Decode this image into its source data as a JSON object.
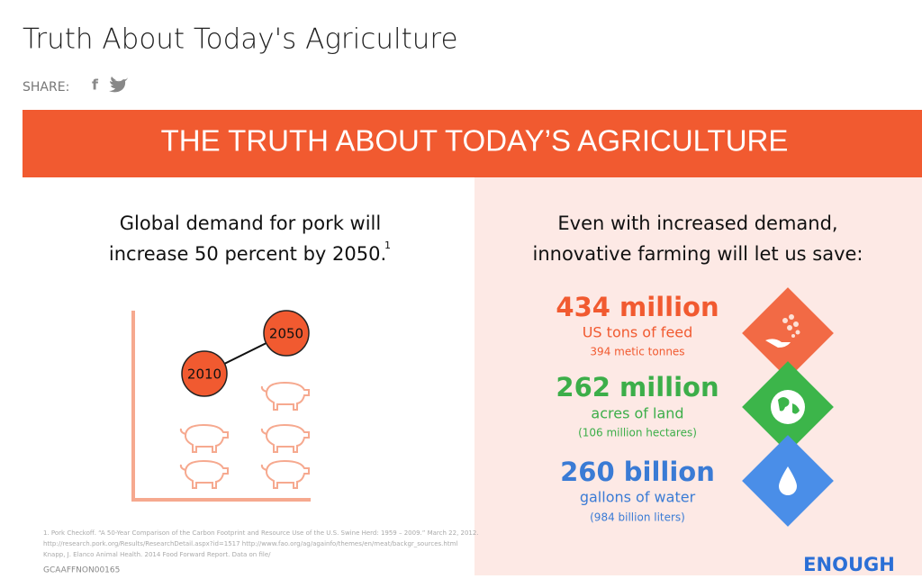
{
  "header": {
    "title": "Truth About Today's Agriculture",
    "share_label": "SHARE:"
  },
  "infographic": {
    "banner": "THE TRUTH ABOUT TODAY’S AGRICULTURE",
    "left": {
      "heading_lines": [
        "Global demand for pork will",
        "increase 50 percent by 2050."
      ],
      "footnote_mark": "1",
      "years": [
        "2010",
        "2050"
      ]
    },
    "right": {
      "heading_lines": [
        "Even with increased demand,",
        "innovative farming will let us save:"
      ],
      "stats": [
        {
          "amount": "434 million",
          "unit": "US tons of feed",
          "metric": "394 metic tonnes"
        },
        {
          "amount": "262 million",
          "unit": "acres of land",
          "metric": "(106 million hectares)"
        },
        {
          "amount": "260 billion",
          "unit": "gallons of water",
          "metric": "(984 billion liters)"
        }
      ]
    },
    "footnote_lines": [
      "1. Pork Checkoff. “A 50-Year Comparison of the Carbon Footprint and Resource Use of the U.S. Swine Herd: 1959 – 2009.” March 22, 2012.",
      "http://research.pork.org/Results/ResearchDetail.aspx?id=1517 http://www.fao.org/ag/againfo/themes/en/meat/backgr_sources.html",
      "Knapp, J. Elanco Animal Health. 2014 Food Forward Report. Data on file/"
    ],
    "code": "GCAAFFNON00165",
    "logo": "ENOUGH"
  }
}
